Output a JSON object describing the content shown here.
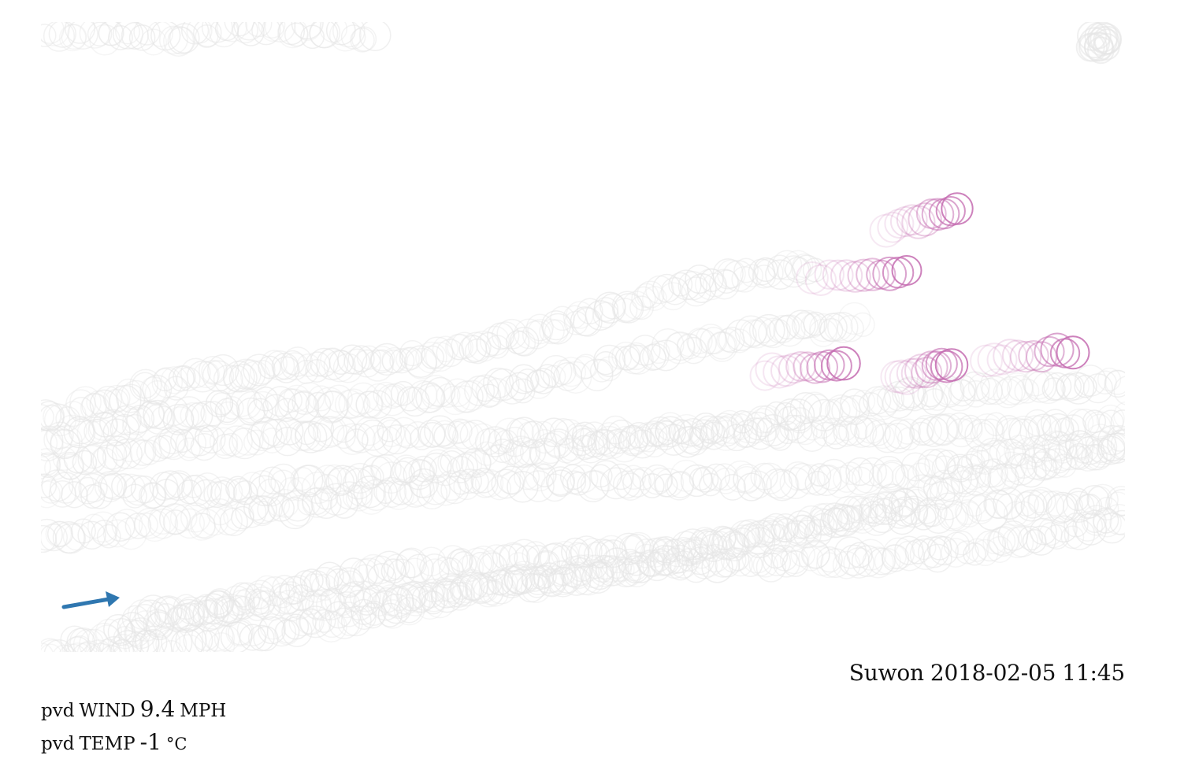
{
  "location": {
    "city": "Suwon",
    "date": "2018-02-05",
    "time": "11:45"
  },
  "readouts": {
    "wind": {
      "station": "pvd",
      "label": "WIND",
      "value": "9.4",
      "unit": "MPH"
    },
    "temp": {
      "station": "pvd",
      "label": "TEMP",
      "value": "-1",
      "unit": "°C"
    }
  },
  "wind_indicator": {
    "icon": "wind-direction-arrow-icon",
    "color": "#2f77b0"
  },
  "colors": {
    "trail_faded": "#e6e6e6",
    "trail_active": "#c46bb0"
  }
}
